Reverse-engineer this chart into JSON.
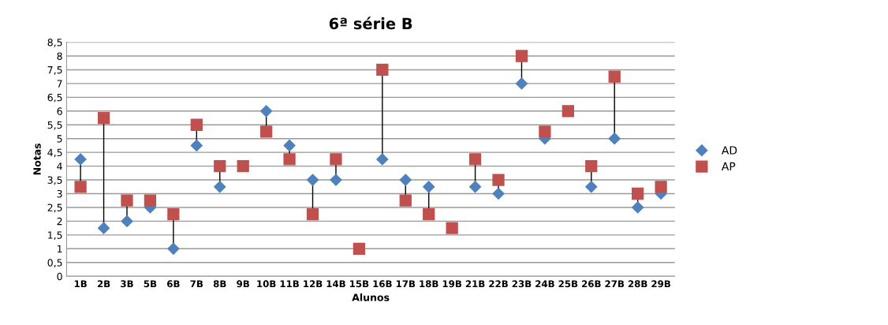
{
  "chart_data": {
    "type": "scatter",
    "title": "6ª série B",
    "xlabel": "Alunos",
    "ylabel": "Notas",
    "categories": [
      "1B",
      "2B",
      "3B",
      "5B",
      "6B",
      "7B",
      "8B",
      "9B",
      "10B",
      "11B",
      "12B",
      "14B",
      "15B",
      "16B",
      "17B",
      "18B",
      "19B",
      "21B",
      "22B",
      "23B",
      "24B",
      "25B",
      "26B",
      "27B",
      "28B",
      "29B"
    ],
    "series": [
      {
        "name": "AD",
        "color": "#4f81bd",
        "marker": "diamond",
        "values": [
          4.25,
          1.75,
          2,
          2.5,
          1,
          4.75,
          3.25,
          null,
          6,
          4.75,
          3.5,
          3.5,
          null,
          4.25,
          3.5,
          3.25,
          null,
          3.25,
          3,
          7,
          5,
          null,
          3.25,
          5,
          2.5,
          3
        ]
      },
      {
        "name": "AP",
        "color": "#c0504d",
        "marker": "square",
        "values": [
          3.25,
          5.75,
          2.75,
          2.75,
          2.25,
          5.5,
          4,
          4,
          5.25,
          4.25,
          2.25,
          4.25,
          1,
          7.5,
          2.75,
          2.25,
          1.75,
          4.25,
          3.5,
          8,
          5.25,
          6,
          4,
          7.25,
          3,
          3.25
        ]
      }
    ],
    "ylim": [
      0,
      8.5
    ],
    "yticks": [
      0,
      {
        "value": 0.5,
        "label": "0,5"
      },
      1,
      {
        "value": 1.5,
        "label": "1,5"
      },
      2,
      {
        "value": 2.5,
        "label": "2,5"
      },
      3,
      {
        "value": 3.5,
        "label": "3,5"
      },
      4,
      {
        "value": 4.5,
        "label": "4,5"
      },
      5,
      {
        "value": 5.5,
        "label": "5,5"
      },
      6,
      {
        "value": 6.5,
        "label": "6,5"
      },
      7,
      {
        "value": 7.5,
        "label": "7,5"
      },
      8,
      {
        "value": 8.5,
        "label": "8,5"
      }
    ],
    "grid": "y",
    "legend": "right"
  }
}
